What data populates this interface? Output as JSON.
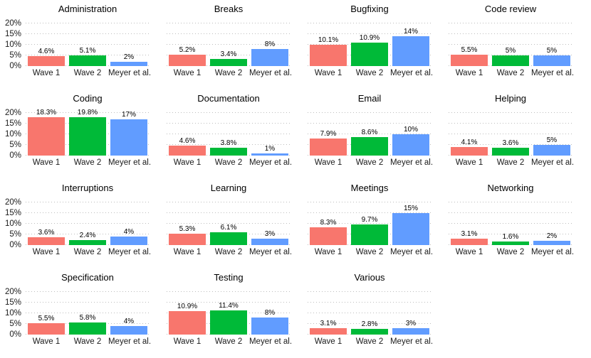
{
  "chart_data": {
    "type": "bar",
    "title": "",
    "categories": [
      "Wave 1",
      "Wave 2",
      "Meyer et al."
    ],
    "bar_colors": [
      "#F8766D",
      "#00BA38",
      "#619CFF"
    ],
    "ylim": [
      0,
      22
    ],
    "yticks": {
      "values": [
        20,
        15,
        10,
        5,
        0
      ],
      "labels": [
        "20%",
        "15%",
        "10%",
        "5%",
        "0%"
      ]
    },
    "grid": "horizontal dotted major gridlines, light gray, white background",
    "legend_position": "none",
    "layout": {
      "columns": 4,
      "rows": 4,
      "facets_in_last_row": 3
    },
    "facets": [
      {
        "title": "Administration",
        "values": [
          4.6,
          5.1,
          2
        ],
        "labels": [
          "4.6%",
          "5.1%",
          "2%"
        ]
      },
      {
        "title": "Breaks",
        "values": [
          5.2,
          3.4,
          8
        ],
        "labels": [
          "5.2%",
          "3.4%",
          "8%"
        ]
      },
      {
        "title": "Bugfixing",
        "values": [
          10.1,
          10.9,
          14
        ],
        "labels": [
          "10.1%",
          "10.9%",
          "14%"
        ]
      },
      {
        "title": "Code review",
        "values": [
          5.5,
          5,
          5
        ],
        "labels": [
          "5.5%",
          "5%",
          "5%"
        ]
      },
      {
        "title": "Coding",
        "values": [
          18.3,
          19.8,
          17
        ],
        "labels": [
          "18.3%",
          "19.8%",
          "17%"
        ]
      },
      {
        "title": "Documentation",
        "values": [
          4.6,
          3.8,
          1
        ],
        "labels": [
          "4.6%",
          "3.8%",
          "1%"
        ]
      },
      {
        "title": "Email",
        "values": [
          7.9,
          8.6,
          10
        ],
        "labels": [
          "7.9%",
          "8.6%",
          "10%"
        ]
      },
      {
        "title": "Helping",
        "values": [
          4.1,
          3.6,
          5
        ],
        "labels": [
          "4.1%",
          "3.6%",
          "5%"
        ]
      },
      {
        "title": "Interruptions",
        "values": [
          3.6,
          2.4,
          4
        ],
        "labels": [
          "3.6%",
          "2.4%",
          "4%"
        ]
      },
      {
        "title": "Learning",
        "values": [
          5.3,
          6.1,
          3
        ],
        "labels": [
          "5.3%",
          "6.1%",
          "3%"
        ]
      },
      {
        "title": "Meetings",
        "values": [
          8.3,
          9.7,
          15
        ],
        "labels": [
          "8.3%",
          "9.7%",
          "15%"
        ]
      },
      {
        "title": "Networking",
        "values": [
          3.1,
          1.6,
          2
        ],
        "labels": [
          "3.1%",
          "1.6%",
          "2%"
        ]
      },
      {
        "title": "Specification",
        "values": [
          5.5,
          5.8,
          4
        ],
        "labels": [
          "5.5%",
          "5.8%",
          "4%"
        ]
      },
      {
        "title": "Testing",
        "values": [
          10.9,
          11.4,
          8
        ],
        "labels": [
          "10.9%",
          "11.4%",
          "8%"
        ]
      },
      {
        "title": "Various",
        "values": [
          3.1,
          2.8,
          3
        ],
        "labels": [
          "3.1%",
          "2.8%",
          "3%"
        ]
      }
    ]
  }
}
